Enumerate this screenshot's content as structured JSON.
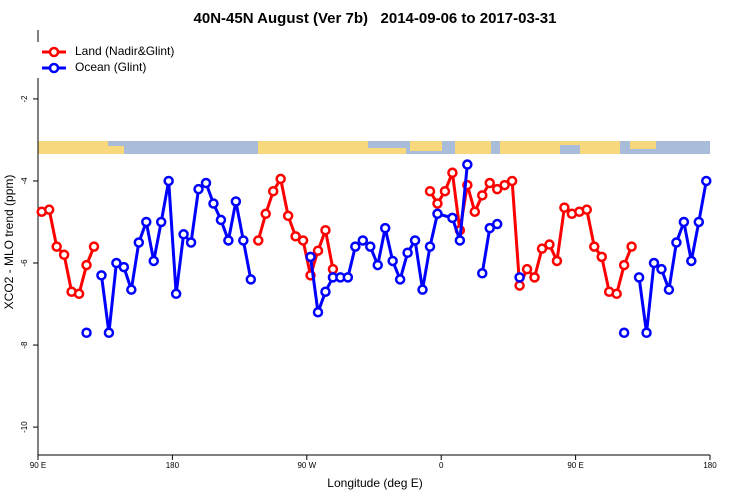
{
  "chart_data": {
    "type": "line",
    "title": "40N-45N August (Ver 7b)   2014-09-06 to 2017-03-31",
    "x_label": "Longitude (deg E)",
    "y_label": "XCO2 - MLO trend (ppm)",
    "xlim": [
      90,
      540
    ],
    "xticks": [
      {
        "value": 90,
        "label": "90 E"
      },
      180,
      {
        "value": 270,
        "label": "90 W"
      },
      {
        "value": 360,
        "label": "0"
      },
      {
        "value": 450,
        "label": "90 E"
      },
      {
        "value": 540,
        "label": "180"
      }
    ],
    "ylim": [
      -10.68,
      -0.32
    ],
    "yticks": [
      -10,
      -8,
      -6,
      -4,
      -2
    ],
    "legend": "top-left",
    "series": [
      {
        "name": "Land (Nadir&Glint)",
        "color": "#ff0000",
        "x": [
          92.5,
          97.5,
          102.5,
          107.5,
          112.5,
          117.5,
          122.5,
          127.5,
          182.5,
          237.5,
          242.5,
          247.5,
          252.5,
          257.5,
          262.5,
          267.5,
          272.5,
          277.5,
          282.5,
          287.5,
          320,
          352.5,
          357.5,
          362.5,
          367.5,
          372.5,
          377.5,
          382.5,
          387.5,
          392.5,
          397.5,
          402.5,
          407.5,
          412.5,
          417.5,
          422.5,
          427.5,
          432.5,
          437.5,
          442.5,
          447.5,
          452.5,
          457.5,
          462.5,
          467.5,
          472.5,
          477.5,
          482.5,
          487.5
        ],
        "values": [
          -4.75,
          -4.7,
          -5.6,
          -5.8,
          -6.7,
          -6.75,
          -6.05,
          -5.6,
          null,
          -5.45,
          -4.8,
          -4.25,
          -3.95,
          -4.85,
          -5.35,
          -5.45,
          -6.3,
          -5.7,
          -5.2,
          -6.15,
          null,
          -4.25,
          -4.55,
          -4.25,
          -3.8,
          -5.2,
          -4.1,
          -4.75,
          -4.35,
          -4.05,
          -4.2,
          -4.1,
          -4.0,
          -6.55,
          -6.15,
          -6.35,
          -5.65,
          -5.55,
          -5.95,
          -4.65,
          -4.8,
          -4.75,
          -4.7,
          -5.6,
          -5.85,
          -6.7,
          -6.75,
          -6.05,
          -5.6
        ]
      },
      {
        "name": "Ocean (Glint)",
        "color": "#0000ff",
        "x": [
          122.5,
          127.5,
          132.5,
          137.5,
          142.5,
          147.5,
          152.5,
          157.5,
          162.5,
          167.5,
          172.5,
          177.5,
          182.5,
          187.5,
          192.5,
          197.5,
          202.5,
          207.5,
          212.5,
          217.5,
          222.5,
          227.5,
          232.5,
          252.5,
          272.5,
          277.5,
          282.5,
          287.5,
          292.5,
          297.5,
          302.5,
          307.5,
          312.5,
          317.5,
          322.5,
          327.5,
          332.5,
          337.5,
          342.5,
          347.5,
          352.5,
          357.5,
          367.5,
          372.5,
          377.5,
          382.5,
          387.5,
          392.5,
          397.5,
          402.5,
          412.5,
          417.5,
          482.5,
          487.5,
          492.5,
          497.5,
          502.5,
          507.5,
          512.5,
          517.5,
          522.5,
          527.5,
          532.5,
          537.5
        ],
        "values": [
          -7.7,
          null,
          -6.3,
          -7.7,
          -6.0,
          -6.1,
          -6.65,
          -5.5,
          -5.0,
          -5.95,
          -5.0,
          -4.0,
          -6.75,
          -5.3,
          -5.5,
          -4.2,
          -4.05,
          -4.55,
          -4.95,
          -5.45,
          -4.5,
          -5.45,
          -6.4,
          null,
          -5.85,
          -7.2,
          -6.7,
          -6.35,
          -6.35,
          -6.35,
          -5.6,
          -5.45,
          -5.6,
          -6.05,
          -5.15,
          -5.95,
          -6.4,
          -5.75,
          -5.45,
          -6.65,
          -5.6,
          -4.8,
          -4.9,
          -5.45,
          -3.6,
          null,
          -6.25,
          -5.15,
          -5.05,
          null,
          -6.35,
          null,
          -7.7,
          null,
          -6.35,
          -7.7,
          -6.0,
          -6.15,
          -6.65,
          -5.5,
          -5.0,
          -5.95,
          -5.0,
          -4.0
        ]
      }
    ]
  }
}
